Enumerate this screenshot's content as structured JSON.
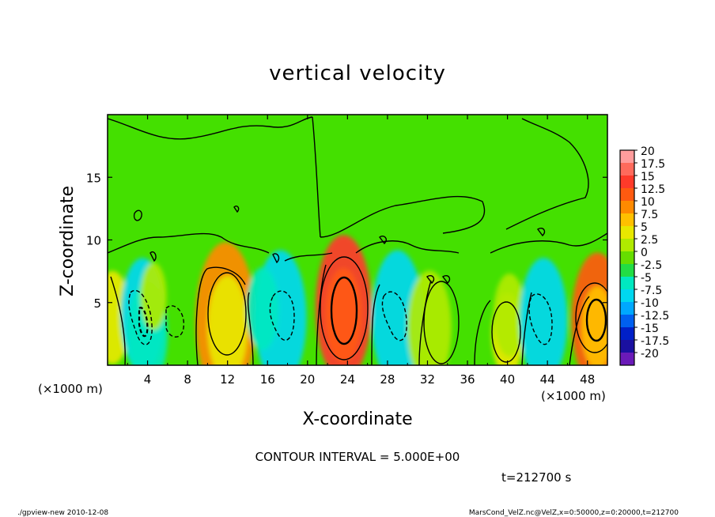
{
  "chart_data": {
    "type": "heatmap",
    "title": "vertical velocity",
    "xlabel": "X-coordinate",
    "ylabel": "Z-coordinate",
    "x_unit_left": "(×1000 m)",
    "x_unit_right": "(×1000 m)",
    "xlim": [
      0,
      50
    ],
    "ylim": [
      0,
      20
    ],
    "x_ticks": [
      {
        "value": 4,
        "label": "4"
      },
      {
        "value": 8,
        "label": "8"
      },
      {
        "value": 12,
        "label": "12"
      },
      {
        "value": 16,
        "label": "16"
      },
      {
        "value": 20,
        "label": "20"
      },
      {
        "value": 24,
        "label": "24"
      },
      {
        "value": 28,
        "label": "28"
      },
      {
        "value": 32,
        "label": "32"
      },
      {
        "value": 36,
        "label": "36"
      },
      {
        "value": 40,
        "label": "40"
      },
      {
        "value": 44,
        "label": "44"
      },
      {
        "value": 48,
        "label": "48"
      }
    ],
    "y_ticks": [
      {
        "value": 5,
        "label": "5"
      },
      {
        "value": 10,
        "label": "10"
      },
      {
        "value": 15,
        "label": "15"
      }
    ],
    "colorbar": {
      "levels": [
        {
          "label": "20",
          "color": "#ff9c9c"
        },
        {
          "label": "17.5",
          "color": "#ff6a5c"
        },
        {
          "label": "15",
          "color": "#ff3a2a"
        },
        {
          "label": "12.5",
          "color": "#ff5a10"
        },
        {
          "label": "10",
          "color": "#ff8a00"
        },
        {
          "label": "7.5",
          "color": "#ffc000"
        },
        {
          "label": "5",
          "color": "#e8e800"
        },
        {
          "label": "2.5",
          "color": "#b0ea00"
        },
        {
          "label": "0",
          "color": "#66dd00"
        },
        {
          "label": "-2.5",
          "color": "#22dd44"
        },
        {
          "label": "-5",
          "color": "#00e8c0"
        },
        {
          "label": "-7.5",
          "color": "#00d8f0"
        },
        {
          "label": "-10",
          "color": "#00a8ff"
        },
        {
          "label": "-12.5",
          "color": "#0060f0"
        },
        {
          "label": "-15",
          "color": "#0020c8"
        },
        {
          "label": "-17.5",
          "color": "#1a10a0"
        },
        {
          "label": "-20",
          "color": "#6a1ab8"
        }
      ]
    },
    "background_color": "#44e000",
    "cells": [
      {
        "x": 0.5,
        "z": 3.8,
        "w": 1.8,
        "v": 4
      },
      {
        "x": 3.5,
        "z": 4.0,
        "w": 2.2,
        "v": -8
      },
      {
        "x": 4.0,
        "z": 2.5,
        "w": 2.0,
        "v": -6
      },
      {
        "x": 4.6,
        "z": 5.5,
        "w": 1.3,
        "v": 3
      },
      {
        "x": 11.8,
        "z": 3.6,
        "w": 3.0,
        "v": 9
      },
      {
        "x": 12.0,
        "z": 3.0,
        "w": 2.0,
        "v": 6
      },
      {
        "x": 17.3,
        "z": 3.8,
        "w": 2.6,
        "v": -8
      },
      {
        "x": 15.5,
        "z": 4.5,
        "w": 1.6,
        "v": -4
      },
      {
        "x": 23.6,
        "z": 4.6,
        "w": 2.8,
        "v": 15
      },
      {
        "x": 23.6,
        "z": 4.0,
        "w": 1.8,
        "v": 12
      },
      {
        "x": 29.0,
        "z": 3.8,
        "w": 2.6,
        "v": -8
      },
      {
        "x": 32.2,
        "z": 3.0,
        "w": 2.2,
        "v": 3
      },
      {
        "x": 40.0,
        "z": 2.5,
        "w": 1.6,
        "v": 6
      },
      {
        "x": 40.2,
        "z": 4.0,
        "w": 1.6,
        "v": 3
      },
      {
        "x": 43.6,
        "z": 3.6,
        "w": 2.4,
        "v": -7
      },
      {
        "x": 49.0,
        "z": 3.6,
        "w": 2.6,
        "v": 12
      },
      {
        "x": 49.0,
        "z": 3.0,
        "w": 1.6,
        "v": 8
      }
    ]
  },
  "contour_interval_label": "CONTOUR INTERVAL = 5.000E+00",
  "time_label": "t=212700 s",
  "footer_left": "./gpview-new  2010-12-08",
  "footer_right": "MarsCond_VelZ.nc@VelZ,x=0:50000,z=0:20000,t=212700"
}
